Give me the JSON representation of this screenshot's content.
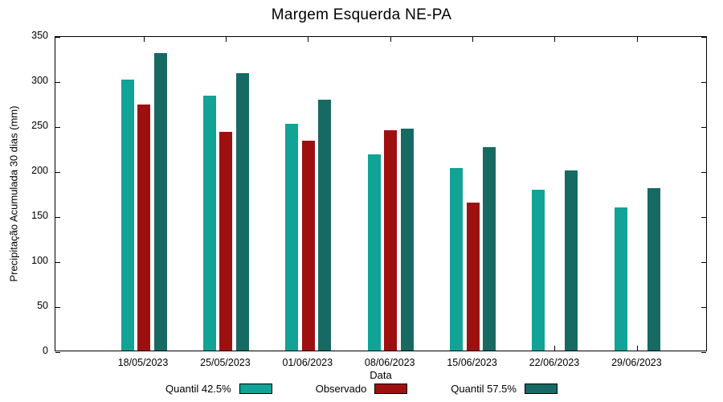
{
  "chart_data": {
    "type": "bar",
    "title": "Margem Esquerda NE-PA",
    "xlabel": "Data",
    "ylabel": "Precipitação Acumulada 30 dias (mm)",
    "ylim": [
      0,
      350
    ],
    "yticks": [
      0,
      50,
      100,
      150,
      200,
      250,
      300,
      350
    ],
    "grid": false,
    "legend_position": "bottom-center",
    "categories": [
      "18/05/2023",
      "25/05/2023",
      "01/06/2023",
      "08/06/2023",
      "15/06/2023",
      "22/06/2023",
      "29/06/2023"
    ],
    "series": [
      {
        "name": "Quantil 42.5%",
        "color": "#10A396",
        "values": [
          301,
          283,
          252,
          218,
          203,
          179,
          159
        ]
      },
      {
        "name": "Observado",
        "color": "#9E1010",
        "values": [
          273,
          243,
          233,
          245,
          164,
          null,
          null
        ]
      },
      {
        "name": "Quantil 57.5%",
        "color": "#176A63",
        "values": [
          330,
          308,
          279,
          246,
          226,
          200,
          180
        ]
      }
    ],
    "colors": {
      "axis": "#000000",
      "text": "#000000",
      "background": "#FFFFFF"
    }
  }
}
